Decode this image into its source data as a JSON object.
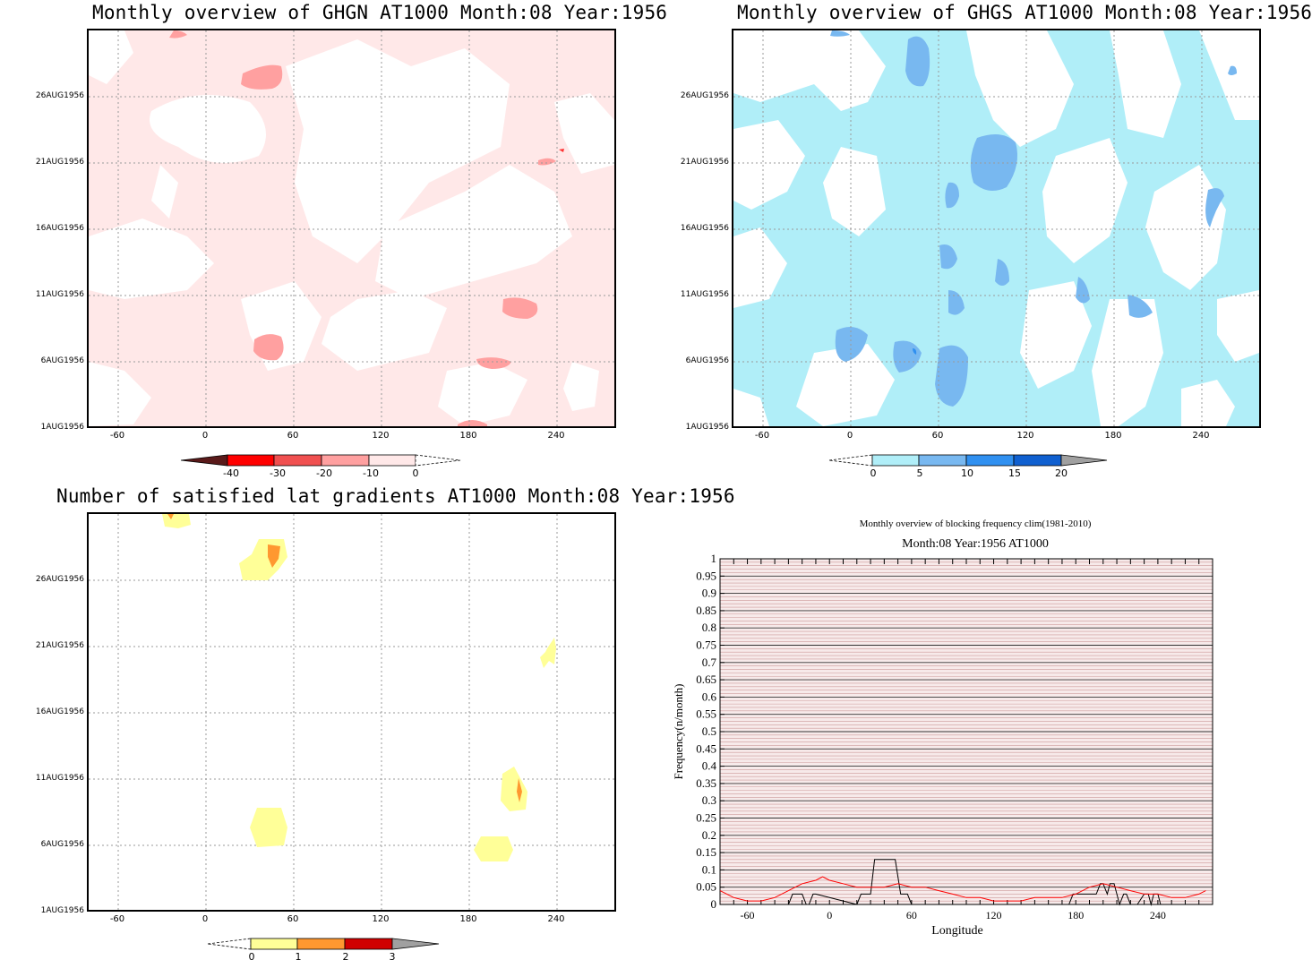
{
  "panels": {
    "ghgn": {
      "title": "Monthly overview of GHGN AT1000 Month:08 Year:1956"
    },
    "ghgs": {
      "title": "Monthly overview of GHGS AT1000 Month:08 Year:1956"
    },
    "gradients": {
      "title": "Number of satisfied lat gradients AT1000 Month:08 Year:1956"
    }
  },
  "axes": {
    "y_ticks": [
      "26AUG1956",
      "21AUG1956",
      "16AUG1956",
      "11AUG1956",
      "6AUG1956",
      "1AUG1956"
    ],
    "x_ticks": [
      "-60",
      "0",
      "60",
      "120",
      "180",
      "240"
    ]
  },
  "colorbars": {
    "ghgn": {
      "labels": [
        "-40",
        "-30",
        "-20",
        "-10",
        "0"
      ],
      "colors": [
        "#5a1a1a",
        "#ff0000",
        "#f05050",
        "#ffa0a0",
        "#ffe8e8"
      ]
    },
    "ghgs": {
      "labels": [
        "0",
        "5",
        "10",
        "15",
        "20"
      ],
      "colors": [
        "#b0eef8",
        "#78b8f0",
        "#3090f0",
        "#1060d0",
        "#a0a0a0"
      ]
    },
    "gradients": {
      "labels": [
        "0",
        "1",
        "2",
        "3"
      ],
      "colors": [
        "#ffff98",
        "#ff9830",
        "#d00000",
        "#a0a0a0"
      ]
    }
  },
  "chart_data": [
    {
      "type": "heatmap",
      "title": "Monthly overview of GHGN AT1000 Month:08 Year:1956",
      "xlim": [
        -80,
        280
      ],
      "x_ticks": [
        -60,
        0,
        60,
        120,
        180,
        240
      ],
      "y_ticks": [
        "26AUG1956",
        "21AUG1956",
        "16AUG1956",
        "11AUG1956",
        "6AUG1956",
        "1AUG1956"
      ],
      "levels": [
        -40,
        -30,
        -20,
        -10,
        0
      ]
    },
    {
      "type": "heatmap",
      "title": "Monthly overview of GHGS AT1000 Month:08 Year:1956",
      "xlim": [
        -80,
        280
      ],
      "x_ticks": [
        -60,
        0,
        60,
        120,
        180,
        240
      ],
      "y_ticks": [
        "26AUG1956",
        "21AUG1956",
        "16AUG1956",
        "11AUG1956",
        "6AUG1956",
        "1AUG1956"
      ],
      "levels": [
        0,
        5,
        10,
        15,
        20
      ]
    },
    {
      "type": "heatmap",
      "title": "Number of satisfied lat gradients AT1000 Month:08 Year:1956",
      "xlim": [
        -80,
        280
      ],
      "x_ticks": [
        -60,
        0,
        60,
        120,
        180,
        240
      ],
      "y_ticks": [
        "26AUG1956",
        "21AUG1956",
        "16AUG1956",
        "11AUG1956",
        "6AUG1956",
        "1AUG1956"
      ],
      "levels": [
        0,
        1,
        2,
        3
      ]
    },
    {
      "type": "line",
      "title": "Monthly overview of blocking frequency clim(1981-2010)",
      "subtitle": "Month:08 Year:1956  AT1000",
      "xlabel": "Longitude",
      "ylabel": "Frequency(n/month)",
      "xlim": [
        -80,
        280
      ],
      "ylim": [
        0,
        1
      ],
      "x_ticks": [
        -60,
        0,
        60,
        120,
        180,
        240
      ],
      "y_ticks": [
        "0",
        "0.05",
        "0.1",
        "0.15",
        "0.2",
        "0.25",
        "0.3",
        "0.35",
        "0.4",
        "0.45",
        "0.5",
        "0.55",
        "0.6",
        "0.65",
        "0.7",
        "0.75",
        "0.8",
        "0.85",
        "0.9",
        "0.95",
        "1"
      ],
      "series": [
        {
          "color": "#000000",
          "x": [
            -80,
            -30,
            -27,
            -20,
            -17,
            -15,
            -12,
            -10,
            20,
            23,
            30,
            33,
            37,
            48,
            52,
            57,
            60,
            175,
            178,
            195,
            198,
            200,
            203,
            205,
            208,
            210,
            212,
            215,
            217,
            220,
            222,
            225,
            230,
            233,
            235,
            237,
            240,
            242,
            245,
            247,
            280
          ],
          "y": [
            0,
            0,
            0.03,
            0.03,
            0,
            0,
            0.03,
            0.03,
            0,
            0.03,
            0.03,
            0.13,
            0.13,
            0.13,
            0.03,
            0.03,
            0,
            0,
            0.03,
            0.03,
            0.06,
            0.06,
            0.03,
            0.06,
            0.06,
            0.03,
            0,
            0.03,
            0.03,
            0,
            0,
            0,
            0.03,
            0.03,
            0,
            0.03,
            0.03,
            0,
            0,
            0,
            0
          ]
        },
        {
          "color": "#ff0000",
          "x": [
            -80,
            -70,
            -60,
            -50,
            -40,
            -30,
            -20,
            -10,
            -5,
            0,
            10,
            20,
            30,
            40,
            50,
            60,
            70,
            80,
            90,
            100,
            110,
            120,
            130,
            140,
            150,
            160,
            170,
            180,
            190,
            200,
            210,
            220,
            230,
            240,
            250,
            260,
            270,
            275
          ],
          "y": [
            0.04,
            0.02,
            0.01,
            0.01,
            0.02,
            0.04,
            0.06,
            0.07,
            0.08,
            0.07,
            0.06,
            0.05,
            0.05,
            0.05,
            0.06,
            0.05,
            0.05,
            0.04,
            0.03,
            0.02,
            0.02,
            0.01,
            0.01,
            0.01,
            0.02,
            0.02,
            0.02,
            0.03,
            0.05,
            0.06,
            0.05,
            0.04,
            0.03,
            0.03,
            0.02,
            0.02,
            0.03,
            0.04
          ]
        }
      ]
    }
  ]
}
